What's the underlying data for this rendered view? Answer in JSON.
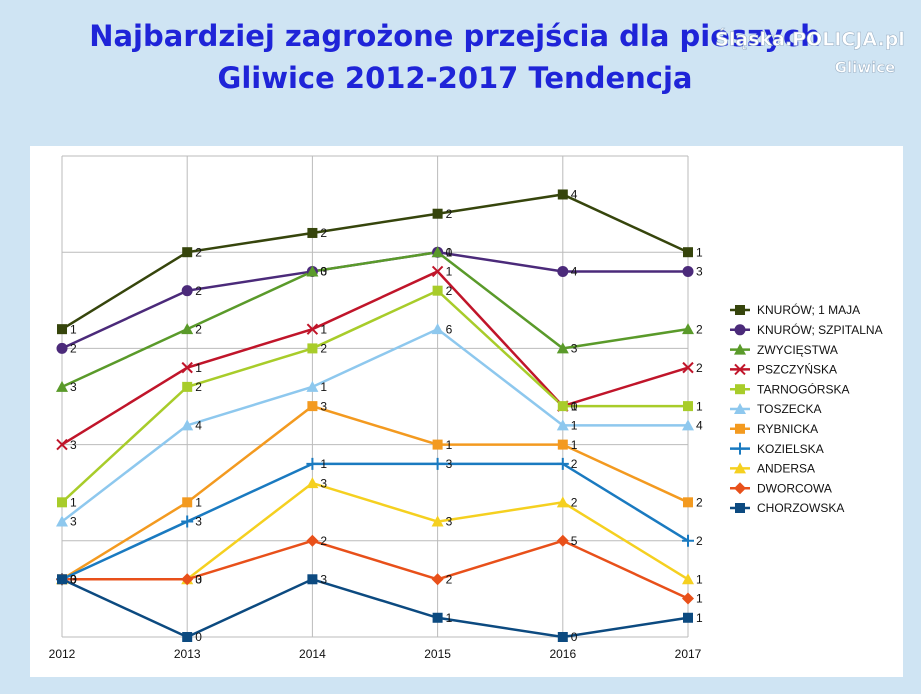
{
  "watermark": {
    "brand": "Śląska.POLICJA.pl",
    "unit": "Gliwice"
  },
  "chart_data": {
    "type": "line",
    "stacked": true,
    "title": [
      "Najbardziej zagrożone przejścia dla pieszych",
      "Gliwice 2012-2017 Tendencja"
    ],
    "categories": [
      "2012",
      "2013",
      "2014",
      "2015",
      "2016",
      "2017"
    ],
    "ylim": [
      0,
      25
    ],
    "yticks": [
      0,
      5,
      10,
      15,
      20,
      25
    ],
    "grid": true,
    "legend": "right",
    "series": [
      {
        "name": "KNURÓW; 1 MAJA",
        "color": "#36450c",
        "marker": "square",
        "values": [
          1,
          2,
          2,
          2,
          4,
          1
        ]
      },
      {
        "name": "KNURÓW; SZPITALNA",
        "color": "#4b2a7a",
        "marker": "circle",
        "values": [
          2,
          2,
          0,
          0,
          4,
          3
        ]
      },
      {
        "name": "ZWYCIĘSTWA",
        "color": "#5a9a2a",
        "marker": "triangle",
        "values": [
          3,
          2,
          3,
          1,
          3,
          2
        ]
      },
      {
        "name": "PSZCZYŃSKA",
        "color": "#c0152a",
        "marker": "x",
        "values": [
          3,
          1,
          1,
          1,
          0,
          2
        ]
      },
      {
        "name": "TARNOGÓRSKA",
        "color": "#a8cc2a",
        "marker": "square",
        "values": [
          1,
          2,
          2,
          2,
          1,
          1
        ]
      },
      {
        "name": "TOSZECKA",
        "color": "#8ec8ee",
        "marker": "triangle",
        "values": [
          3,
          4,
          1,
          6,
          1,
          4
        ]
      },
      {
        "name": "RYBNICKA",
        "color": "#f39a20",
        "marker": "square",
        "values": [
          0,
          1,
          3,
          1,
          1,
          2
        ]
      },
      {
        "name": "KOZIELSKA",
        "color": "#1a7ac0",
        "marker": "plus",
        "values": [
          0,
          3,
          1,
          3,
          2,
          2
        ]
      },
      {
        "name": "ANDERSA",
        "color": "#f5d020",
        "marker": "triangle",
        "values": [
          0,
          0,
          3,
          3,
          2,
          1
        ]
      },
      {
        "name": "DWORCOWA",
        "color": "#e8501a",
        "marker": "diamond",
        "values": [
          0,
          3,
          2,
          2,
          5,
          1
        ]
      },
      {
        "name": "CHORZOWSKA",
        "color": "#0c4a80",
        "marker": "square",
        "values": [
          3,
          0,
          3,
          1,
          0,
          1
        ]
      }
    ]
  }
}
